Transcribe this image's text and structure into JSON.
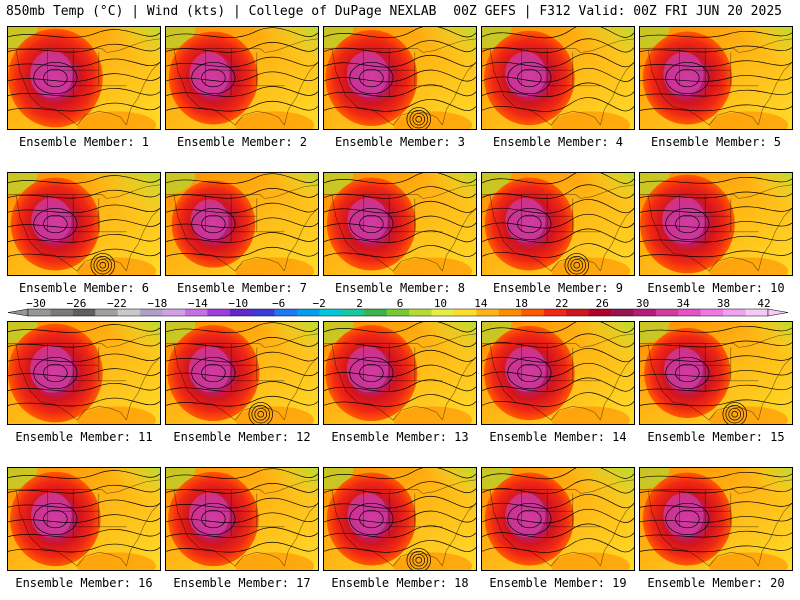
{
  "header": {
    "left": "850mb Temp (°C) | Wind (kts) | College of DuPage NEXLAB",
    "right": "00Z GEFS | F312 Valid: 00Z FRI JUN 20 2025"
  },
  "caption_prefix": "Ensemble Member:",
  "members": [
    {
      "label": "Ensemble Member: 1",
      "cold_ne": 0.45,
      "heat": 1.0
    },
    {
      "label": "Ensemble Member: 2",
      "cold_ne": 0.55,
      "heat": 0.8
    },
    {
      "label": "Ensemble Member: 3",
      "cold_ne": 0.5,
      "heat": 0.9
    },
    {
      "label": "Ensemble Member: 4",
      "cold_ne": 0.6,
      "heat": 0.85
    },
    {
      "label": "Ensemble Member: 5",
      "cold_ne": 0.4,
      "heat": 0.8
    },
    {
      "label": "Ensemble Member: 6",
      "cold_ne": 0.9,
      "heat": 0.8
    },
    {
      "label": "Ensemble Member: 7",
      "cold_ne": 0.3,
      "heat": 0.6
    },
    {
      "label": "Ensemble Member: 8",
      "cold_ne": 0.35,
      "heat": 0.8
    },
    {
      "label": "Ensemble Member: 9",
      "cold_ne": 0.35,
      "heat": 0.8
    },
    {
      "label": "Ensemble Member: 10",
      "cold_ne": 0.3,
      "heat": 1.0
    },
    {
      "label": "Ensemble Member: 11",
      "cold_ne": 0.45,
      "heat": 1.0
    },
    {
      "label": "Ensemble Member: 12",
      "cold_ne": 0.5,
      "heat": 0.9
    },
    {
      "label": "Ensemble Member: 13",
      "cold_ne": 0.55,
      "heat": 0.9
    },
    {
      "label": "Ensemble Member: 14",
      "cold_ne": 0.65,
      "heat": 0.85
    },
    {
      "label": "Ensemble Member: 15",
      "cold_ne": 0.3,
      "heat": 0.7
    },
    {
      "label": "Ensemble Member: 16",
      "cold_ne": 0.4,
      "heat": 0.85
    },
    {
      "label": "Ensemble Member: 17",
      "cold_ne": 0.5,
      "heat": 0.85
    },
    {
      "label": "Ensemble Member: 18",
      "cold_ne": 0.35,
      "heat": 0.8
    },
    {
      "label": "Ensemble Member: 19",
      "cold_ne": 0.8,
      "heat": 0.8
    },
    {
      "label": "Ensemble Member: 20",
      "cold_ne": 0.3,
      "heat": 0.8
    }
  ],
  "colorbar": {
    "labels": [
      "−30",
      "−26",
      "−22",
      "−18",
      "−14",
      "−10",
      "−6",
      "−2",
      "2",
      "6",
      "10",
      "14",
      "18",
      "22",
      "26",
      "30",
      "34",
      "38",
      "42"
    ],
    "colors": [
      "#969696",
      "#7a7a7a",
      "#5f5f5f",
      "#a0a0a0",
      "#c8c8c8",
      "#b0a0c8",
      "#d2a0e6",
      "#c86ee6",
      "#a03cdc",
      "#6428c8",
      "#3c3cdc",
      "#1e78f0",
      "#00a0f0",
      "#00c8dc",
      "#14c8a0",
      "#3cb44b",
      "#78c832",
      "#b4dc32",
      "#e6f03c",
      "#ffdc28",
      "#ffb414",
      "#ff8c00",
      "#ff5a00",
      "#f02814",
      "#d2141e",
      "#b40028",
      "#961450",
      "#b41e78",
      "#d23ca0",
      "#e650c8",
      "#f078e6",
      "#f0a0f0",
      "#f5c8f5"
    ]
  }
}
